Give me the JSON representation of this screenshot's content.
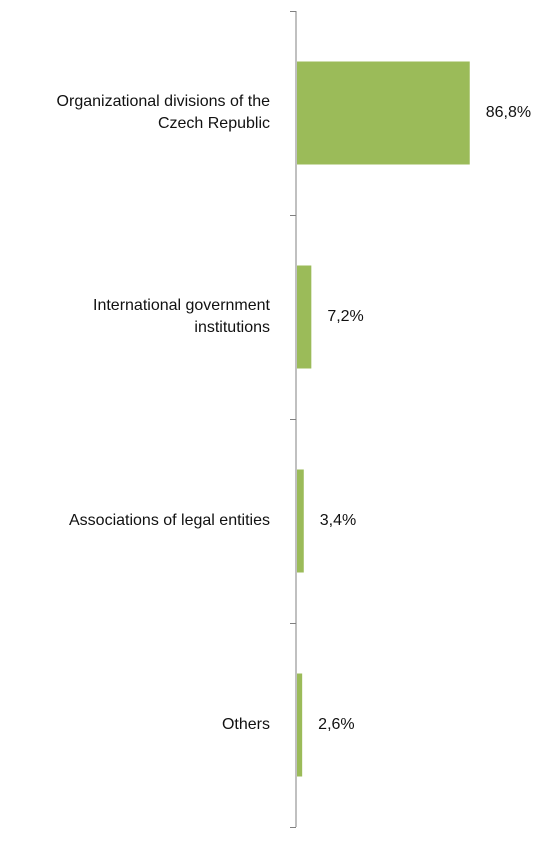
{
  "chart_data": {
    "type": "bar",
    "orientation": "horizontal",
    "categories": [
      [
        "Organizational divisions of the",
        "Czech Republic"
      ],
      [
        "International government",
        "institutions"
      ],
      [
        "Associations of legal entities"
      ],
      [
        "Others"
      ]
    ],
    "values": [
      86.8,
      7.2,
      3.4,
      2.6
    ],
    "value_labels": [
      "86,8%",
      "7,2%",
      "3,4%",
      "2,6%"
    ],
    "xlim": [
      0,
      100
    ],
    "legend": "none",
    "grid": false,
    "bar_color": "#9bbb59",
    "axis_color": "#808080"
  }
}
